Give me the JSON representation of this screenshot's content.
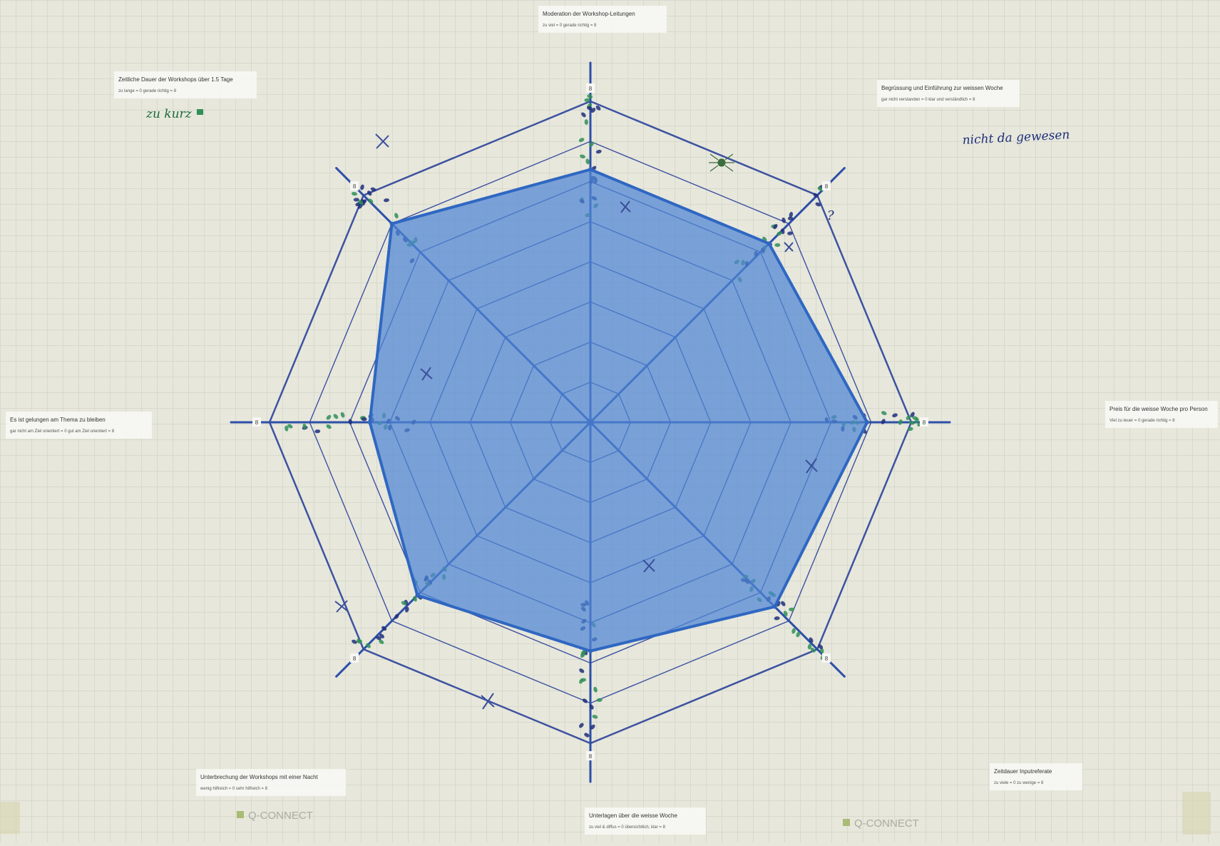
{
  "colors": {
    "paper": "#e7e7dc",
    "grid": "#c9cdbd",
    "axis": "#2d4fa8",
    "web": "#3d52a0",
    "fill": "#4f86d6",
    "fill_stroke": "#2f67c2",
    "dot_dark": "#1f2f7a",
    "dot_green": "#2f8f57"
  },
  "chart_data": {
    "type": "radar",
    "scale_max": 8,
    "axes": [
      {
        "title": "Moderation der Workshop-Leitungen",
        "scale": "zu viel = 0    gerade richtig = 8",
        "max_label": "8",
        "value": 6.3
      },
      {
        "title": "Begrüssung und Einführung zur weissen Woche",
        "scale": "gar nicht verstanden = 0    klar und verständlich = 8",
        "max_label": "8",
        "value": 6.3
      },
      {
        "title": "Preis für die weisse Woche pro Person",
        "scale": "Viel zu teuer = 0    gerade richtig = 8",
        "max_label": "8",
        "value": 6.9
      },
      {
        "title": "Zeitdauer Inputreferate",
        "scale": "zu viele = 0    zu wenige = 8",
        "max_label": "8",
        "value": 6.5
      },
      {
        "title": "Unterlagen über die weisse Woche",
        "scale": "zu viel & diffus = 0    übersichtlich, klar = 8",
        "max_label": "8",
        "value": 5.7
      },
      {
        "title": "Unterbrechung der Workshops mit einer Nacht",
        "scale": "wenig hilfreich = 0    sehr hilfreich = 8",
        "max_label": "8",
        "value": 6.1
      },
      {
        "title": "Es ist gelungen am Thema zu bleiben",
        "scale": "gar nicht am Ziel orientiert = 0    gut am Ziel orientiert = 8",
        "max_label": "8",
        "value": 5.5
      },
      {
        "title": "Zeitliche Dauer der Workshops über 1.5 Tage",
        "scale": "zu lange = 0    gerade richtig = 8",
        "max_label": "8",
        "value": 7.0
      }
    ]
  },
  "annotations": {
    "note_top_left": "zu kurz",
    "note_top_right": "nicht da gewesen",
    "question_mark": "?",
    "brand_left": "Q-CONNECT",
    "brand_right": "Q-CONNECT"
  }
}
